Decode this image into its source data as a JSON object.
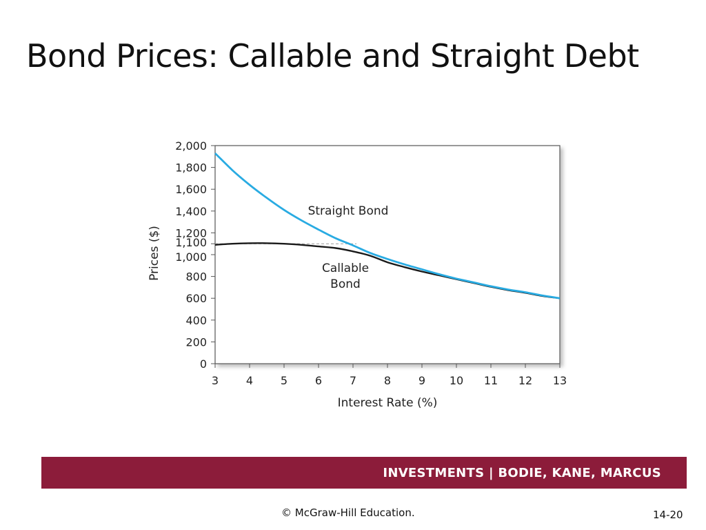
{
  "slide": {
    "title": "Bond Prices: Callable and Straight Debt",
    "footer": "INVESTMENTS | BODIE, KANE, MARCUS",
    "copyright": "© McGraw-Hill Education.",
    "page_number": "14-20"
  },
  "colors": {
    "straight": "#29abe2",
    "callable": "#1a1a1a",
    "footer_bar": "#8c1c3a"
  },
  "chart_data": {
    "type": "line",
    "title": "",
    "xlabel": "Interest Rate (%)",
    "ylabel": "Prices ($)",
    "xlim": [
      3,
      13
    ],
    "ylim": [
      0,
      2000
    ],
    "x_ticks": [
      "3",
      "4",
      "5",
      "6",
      "7",
      "8",
      "9",
      "10",
      "11",
      "12",
      "13"
    ],
    "y_ticks": [
      {
        "value": 0,
        "label": "0"
      },
      {
        "value": 200,
        "label": "200"
      },
      {
        "value": 400,
        "label": "400"
      },
      {
        "value": 600,
        "label": "600"
      },
      {
        "value": 800,
        "label": "800"
      },
      {
        "value": 1000,
        "label": "1,000"
      },
      {
        "value": 1100,
        "label": "1,100"
      },
      {
        "value": 1200,
        "label": "1,200"
      },
      {
        "value": 1400,
        "label": "1,400"
      },
      {
        "value": 1600,
        "label": "1,600"
      },
      {
        "value": 1800,
        "label": "1,800"
      },
      {
        "value": 2000,
        "label": "2,000"
      }
    ],
    "call_price": 1100,
    "grid": false,
    "series": [
      {
        "name": "Straight Bond",
        "x": [
          3,
          3.5,
          4,
          4.5,
          5,
          5.5,
          6,
          6.5,
          7,
          7.5,
          8,
          8.5,
          9,
          9.5,
          10,
          10.5,
          11,
          11.5,
          12,
          12.5,
          13
        ],
        "values": [
          1930,
          1775,
          1640,
          1520,
          1410,
          1315,
          1230,
          1150,
          1085,
          1015,
          960,
          910,
          865,
          820,
          780,
          745,
          710,
          680,
          655,
          625,
          600
        ]
      },
      {
        "name": "Callable Bond",
        "x": [
          3,
          3.5,
          4,
          4.5,
          5,
          5.5,
          6,
          6.5,
          7,
          7.5,
          8,
          8.5,
          9,
          9.5,
          10,
          10.5,
          11,
          11.5,
          12,
          12.5,
          13
        ],
        "values": [
          1090,
          1100,
          1105,
          1105,
          1100,
          1090,
          1075,
          1060,
          1030,
          990,
          930,
          885,
          845,
          810,
          775,
          740,
          705,
          675,
          650,
          620,
          600
        ]
      }
    ],
    "annotations": [
      {
        "series": "Straight Bond",
        "lines": [
          "Straight Bond"
        ]
      },
      {
        "series": "Callable Bond",
        "lines": [
          "Callable",
          "Bond"
        ]
      }
    ]
  }
}
